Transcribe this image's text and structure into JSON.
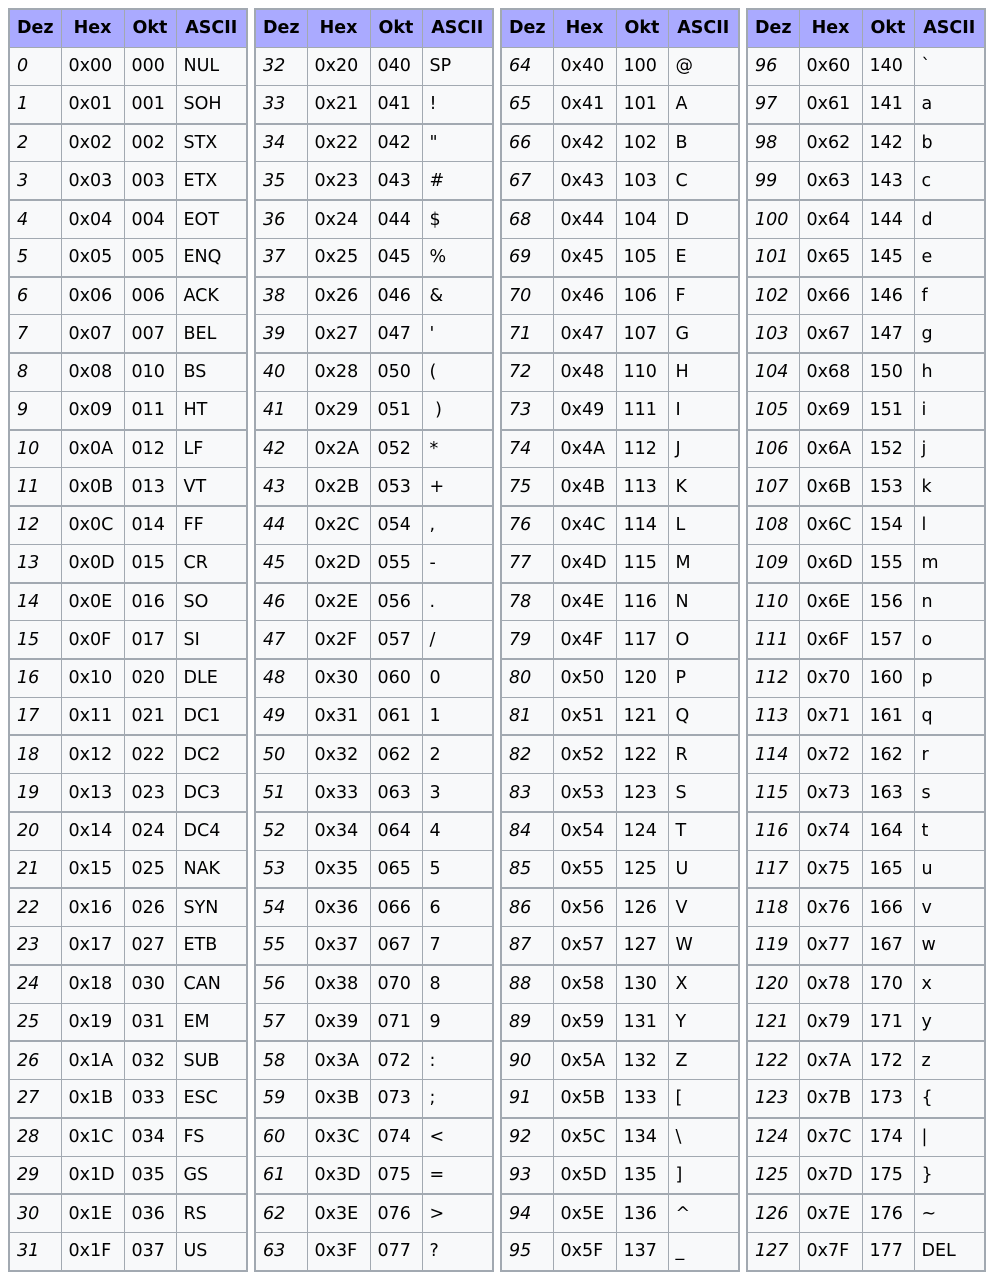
{
  "headers": {
    "dez": "Dez",
    "hex": "Hex",
    "okt": "Okt",
    "ascii": "ASCII"
  },
  "ascii_symbols": [
    "NUL",
    "SOH",
    "STX",
    "ETX",
    "EOT",
    "ENQ",
    "ACK",
    "BEL",
    "BS",
    "HT",
    "LF",
    "VT",
    "FF",
    "CR",
    "SO",
    "SI",
    "DLE",
    "DC1",
    "DC2",
    "DC3",
    "DC4",
    "NAK",
    "SYN",
    "ETB",
    "CAN",
    "EM",
    "SUB",
    "ESC",
    "FS",
    "GS",
    "RS",
    "US",
    "SP",
    "!",
    "\"",
    "#",
    "$",
    "%",
    "&",
    "'",
    "(",
    " )",
    "*",
    "+",
    ",",
    "-",
    ".",
    "/",
    "0",
    "1",
    "2",
    "3",
    "4",
    "5",
    "6",
    "7",
    "8",
    "9",
    ":",
    ";",
    "<",
    "=",
    ">",
    "?",
    "@",
    "A",
    "B",
    "C",
    "D",
    "E",
    "F",
    "G",
    "H",
    "I",
    "J",
    "K",
    "L",
    "M",
    "N",
    "O",
    "P",
    "Q",
    "R",
    "S",
    "T",
    "U",
    "V",
    "W",
    "X",
    "Y",
    "Z",
    "[",
    "\\",
    "]",
    "^",
    "_",
    "`",
    "a",
    "b",
    "c",
    "d",
    "e",
    "f",
    "g",
    "h",
    "i",
    "j",
    "k",
    "l",
    "m",
    "n",
    "o",
    "p",
    "q",
    "r",
    "s",
    "t",
    "u",
    "v",
    "w",
    "x",
    "y",
    "z",
    "{",
    "|",
    "}",
    "~",
    "DEL"
  ],
  "colors": {
    "header_background": "#aaaaff",
    "cell_background": "#f8f9fa",
    "border": "#a2a9b1"
  }
}
